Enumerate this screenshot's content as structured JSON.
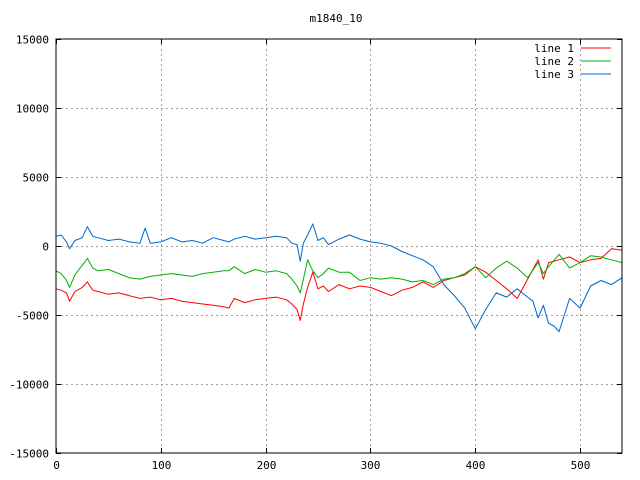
{
  "chart_data": {
    "type": "line",
    "title": "m1840_10",
    "xlim": [
      0,
      540
    ],
    "ylim": [
      -15000,
      15000
    ],
    "x_ticks": [
      0,
      100,
      200,
      300,
      400,
      500
    ],
    "y_ticks": [
      -15000,
      -10000,
      -5000,
      0,
      5000,
      10000,
      15000
    ],
    "grid": true,
    "legend_position": "top-right",
    "series": [
      {
        "name": "line 1",
        "color": "#ff0000",
        "x": [
          0,
          5,
          10,
          13,
          18,
          25,
          30,
          35,
          40,
          50,
          60,
          70,
          80,
          90,
          100,
          110,
          120,
          130,
          140,
          150,
          160,
          165,
          170,
          180,
          190,
          200,
          210,
          220,
          225,
          230,
          233,
          236,
          240,
          245,
          250,
          255,
          260,
          270,
          280,
          290,
          300,
          310,
          320,
          330,
          340,
          350,
          360,
          370,
          380,
          390,
          400,
          410,
          420,
          430,
          440,
          450,
          460,
          465,
          470,
          480,
          490,
          500,
          510,
          520,
          530,
          540
        ],
        "y": [
          -3100,
          -3200,
          -3400,
          -4000,
          -3300,
          -3000,
          -2600,
          -3200,
          -3300,
          -3500,
          -3400,
          -3600,
          -3800,
          -3700,
          -3900,
          -3800,
          -4000,
          -4100,
          -4200,
          -4300,
          -4400,
          -4500,
          -3800,
          -4100,
          -3900,
          -3800,
          -3700,
          -3900,
          -4200,
          -4600,
          -5400,
          -4200,
          -3000,
          -1900,
          -3100,
          -2900,
          -3300,
          -2800,
          -3100,
          -2900,
          -3000,
          -3300,
          -3600,
          -3200,
          -3000,
          -2600,
          -3000,
          -2500,
          -2300,
          -2100,
          -1500,
          -1900,
          -2500,
          -3100,
          -3800,
          -2400,
          -1000,
          -2400,
          -1200,
          -1000,
          -800,
          -1200,
          -1000,
          -900,
          -200,
          -300
        ]
      },
      {
        "name": "line 2",
        "color": "#00b000",
        "x": [
          0,
          5,
          10,
          13,
          18,
          25,
          30,
          35,
          40,
          50,
          60,
          70,
          80,
          90,
          100,
          110,
          120,
          130,
          140,
          150,
          160,
          165,
          170,
          180,
          190,
          200,
          210,
          220,
          225,
          230,
          233,
          236,
          240,
          245,
          250,
          255,
          260,
          270,
          280,
          290,
          300,
          310,
          320,
          330,
          340,
          350,
          360,
          370,
          380,
          390,
          400,
          410,
          420,
          430,
          440,
          450,
          460,
          465,
          470,
          480,
          490,
          500,
          510,
          520,
          530,
          540
        ],
        "y": [
          -1800,
          -2000,
          -2500,
          -3000,
          -2100,
          -1400,
          -900,
          -1600,
          -1800,
          -1700,
          -2000,
          -2300,
          -2400,
          -2200,
          -2100,
          -2000,
          -2100,
          -2200,
          -2000,
          -1900,
          -1800,
          -1800,
          -1500,
          -2000,
          -1700,
          -1900,
          -1800,
          -2000,
          -2400,
          -2900,
          -3400,
          -2400,
          -1000,
          -1800,
          -2300,
          -2000,
          -1600,
          -1900,
          -1900,
          -2500,
          -2300,
          -2400,
          -2300,
          -2400,
          -2600,
          -2500,
          -2800,
          -2400,
          -2300,
          -2000,
          -1500,
          -2300,
          -1600,
          -1100,
          -1600,
          -2300,
          -1200,
          -2000,
          -1500,
          -600,
          -1600,
          -1200,
          -700,
          -800,
          -1000,
          -1200
        ]
      },
      {
        "name": "line 3",
        "color": "#0066cc",
        "x": [
          0,
          5,
          10,
          13,
          18,
          25,
          30,
          35,
          40,
          50,
          60,
          70,
          80,
          85,
          90,
          100,
          110,
          120,
          130,
          140,
          150,
          160,
          165,
          170,
          180,
          190,
          200,
          210,
          220,
          225,
          230,
          233,
          236,
          240,
          245,
          250,
          255,
          260,
          270,
          280,
          290,
          300,
          310,
          320,
          330,
          340,
          350,
          360,
          370,
          380,
          390,
          400,
          410,
          420,
          430,
          440,
          450,
          455,
          460,
          465,
          470,
          475,
          480,
          490,
          500,
          510,
          520,
          530,
          540
        ],
        "y": [
          700,
          800,
          300,
          -200,
          400,
          600,
          1400,
          700,
          600,
          400,
          500,
          300,
          200,
          1300,
          200,
          300,
          600,
          300,
          400,
          200,
          600,
          400,
          300,
          500,
          700,
          500,
          600,
          700,
          600,
          200,
          100,
          -1100,
          200,
          800,
          1600,
          400,
          600,
          100,
          500,
          800,
          500,
          300,
          200,
          0,
          -400,
          -700,
          -1000,
          -1500,
          -2800,
          -3600,
          -4500,
          -6000,
          -4600,
          -3400,
          -3700,
          -3100,
          -3700,
          -4000,
          -5200,
          -4300,
          -5600,
          -5800,
          -6200,
          -3800,
          -4500,
          -2900,
          -2500,
          -2800,
          -2300
        ]
      }
    ]
  }
}
